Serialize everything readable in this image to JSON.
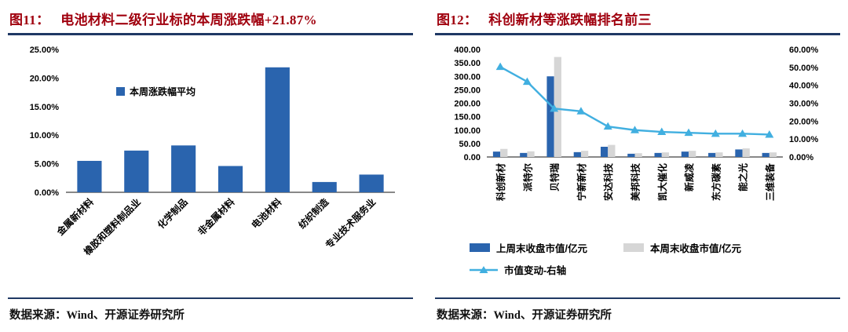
{
  "colors": {
    "title_red": "#A0000E",
    "rule_navy": "#1F3864",
    "bar_blue": "#2A64AE",
    "bar_gray": "#D6D6D6",
    "line_blue": "#41AFE0"
  },
  "left_panel": {
    "fig_label": "图11：",
    "title": "电池材料二级行业标的本周涨跌幅+21.87%",
    "source": "数据来源：Wind、开源证券研究所"
  },
  "right_panel": {
    "fig_label": "图12：",
    "title": "科创新材等涨跌幅排名前三",
    "source": "数据来源：Wind、开源证券研究所"
  },
  "chart_data": [
    {
      "type": "bar",
      "title": "电池材料二级行业标的本周涨跌幅+21.87%",
      "categories": [
        "金属新材料",
        "橡胶和塑料制品业",
        "化学制品",
        "非金属材料",
        "电池材料",
        "纺织制造",
        "专业技术服务业"
      ],
      "values": [
        5.5,
        7.3,
        8.2,
        4.6,
        21.87,
        1.8,
        3.1
      ],
      "legend": "本周涨跌幅平均",
      "xlabel": "",
      "ylabel": "",
      "ylim": [
        0,
        25
      ],
      "ytick": 5,
      "ytick_format": "percent2",
      "bar_color": "#2A64AE",
      "grid": false,
      "legend_position": "inside-top-left"
    },
    {
      "type": "bar+line",
      "title": "科创新材等涨跌幅排名前三",
      "categories": [
        "科创新材",
        "派特尔",
        "贝特瑞",
        "宁新新材",
        "安达科技",
        "美邦科技",
        "凯大催化",
        "新威凌",
        "东方碳素",
        "能之光",
        "三维装备"
      ],
      "series": [
        {
          "name": "上周末收盘市值/亿元",
          "type": "bar",
          "axis": "left",
          "color": "#2A64AE",
          "values": [
            20,
            15,
            300,
            18,
            38,
            12,
            15,
            20,
            15,
            28,
            15
          ]
        },
        {
          "name": "本周末收盘市值/亿元",
          "type": "bar",
          "axis": "left",
          "color": "#D6D6D6",
          "values": [
            30,
            21,
            372,
            23,
            45,
            14,
            17,
            23,
            17,
            32,
            17
          ]
        },
        {
          "name": "市值变动-右轴",
          "type": "line",
          "axis": "right",
          "color": "#41AFE0",
          "marker": "triangle",
          "values": [
            50.3,
            42.0,
            27.0,
            25.5,
            17.0,
            15.0,
            14.0,
            13.5,
            13.0,
            13.0,
            12.5
          ]
        }
      ],
      "left_axis": {
        "min": 0,
        "max": 400,
        "tick": 50,
        "format": "number2"
      },
      "right_axis": {
        "min": 0,
        "max": 60,
        "tick": 10,
        "format": "percent2"
      },
      "grid": false,
      "legend_position": "bottom"
    }
  ]
}
